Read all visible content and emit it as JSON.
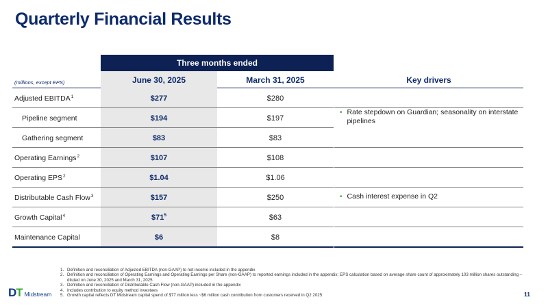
{
  "title": "Quarterly Financial Results",
  "table": {
    "group_header": "Three months ended",
    "units_label": "(millions, except EPS)",
    "col1_header": "June 30, 2025",
    "col2_header": "March 31, 2025",
    "col3_header": "Key drivers",
    "rows": [
      {
        "label": "Adjusted EBITDA",
        "sup": "1",
        "v1": "$277",
        "v1_sup": "",
        "v2": "$280"
      },
      {
        "label": "Pipeline segment",
        "sup": "",
        "v1": "$194",
        "v1_sup": "",
        "v2": "$197"
      },
      {
        "label": "Gathering segment",
        "sup": "",
        "v1": "$83",
        "v1_sup": "",
        "v2": "$83"
      },
      {
        "label": "Operating Earnings",
        "sup": "2",
        "v1": "$107",
        "v1_sup": "",
        "v2": "$108"
      },
      {
        "label": "Operating EPS",
        "sup": "2",
        "v1": "$1.04",
        "v1_sup": "",
        "v2": "$1.06"
      },
      {
        "label": "Distributable Cash Flow",
        "sup": "3",
        "v1": "$157",
        "v1_sup": "",
        "v2": "$250"
      },
      {
        "label": "Growth Capital",
        "sup": "4",
        "v1": "$71",
        "v1_sup": "5",
        "v2": "$63"
      },
      {
        "label": "Maintenance Capital",
        "sup": "",
        "v1": "$6",
        "v1_sup": "",
        "v2": "$8"
      }
    ],
    "drivers": [
      "Rate stepdown on Guardian; seasonality on interstate pipelines",
      "Cash interest expense in Q2"
    ]
  },
  "footnotes": [
    {
      "num": "1.",
      "text": "Definition and reconciliation of Adjusted EBITDA (non-GAAP) to net income included in the appendix"
    },
    {
      "num": "2.",
      "text": "Definition and reconciliation of Operating Earnings and Operating Earnings per Share (non-GAAP) to reported earnings included in the appendix; EPS calculation based on average share count of approximately 103 million shares outstanding – diluted on June 30, 2025 and March 31, 2025"
    },
    {
      "num": "3.",
      "text": "Definition and reconciliation of Distributable Cash Flow (non-GAAP) included in the appendix"
    },
    {
      "num": "4.",
      "text": "Includes contribution to equity method investees"
    },
    {
      "num": "5.",
      "text": "Growth capital reflects DT Midstream capital spend of $77 million less ~$6 million cash contribution from customers received in Q2 2025"
    }
  ],
  "logo": {
    "mark_dt_1": "D",
    "mark_dt_2": "T",
    "name": "Midstream"
  },
  "page_number": "11",
  "colors": {
    "navy": "#0d2154",
    "title_blue": "#0d2a6b",
    "green": "#3aaa35",
    "shade": "#e8e8e8"
  }
}
